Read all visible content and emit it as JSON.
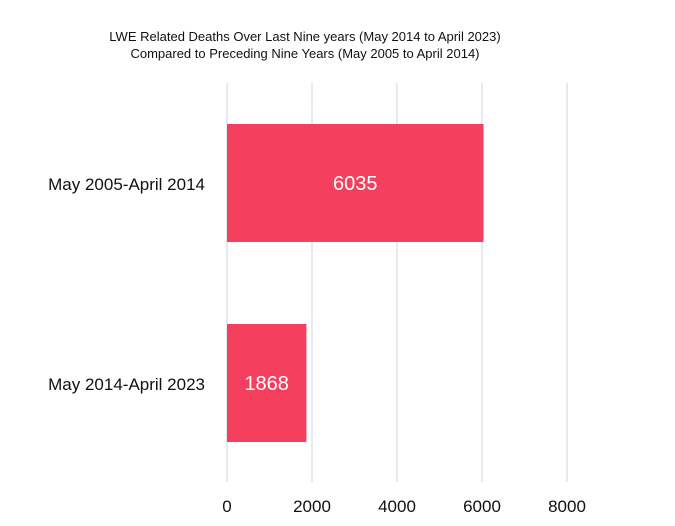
{
  "chart_data": {
    "type": "bar",
    "orientation": "horizontal",
    "title": [
      "LWE Related Deaths Over Last Nine years (May 2014 to April 2023)",
      "Compared to Preceding Nine Years (May 2005 to April 2014)"
    ],
    "categories": [
      "May 2005-April 2014",
      "May 2014-April 2023"
    ],
    "values": [
      6035,
      1868
    ],
    "value_labels": [
      "6035",
      "1868"
    ],
    "x_ticks": [
      0,
      2000,
      4000,
      6000,
      8000
    ],
    "x_tick_labels": [
      "0",
      "2000",
      "4000",
      "6000",
      "8000"
    ],
    "xlim": [
      0,
      8000
    ],
    "grid": true,
    "legend": "none",
    "colors": {
      "bar": "#f43f5e",
      "grid": "#cbd5e1",
      "text": "#111111",
      "value_label": "#ffffff"
    }
  }
}
